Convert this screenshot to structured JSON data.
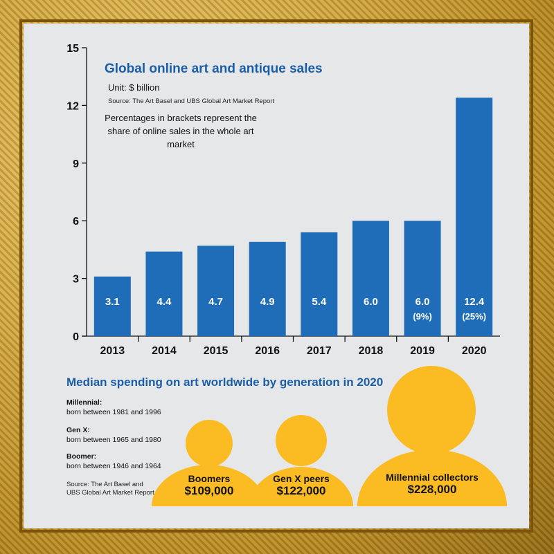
{
  "chart_data": [
    {
      "type": "bar",
      "title": "Global online art and antique sales",
      "unit": "Unit: $ billion",
      "source": "Source: The Art Basel and UBS Global Art Market Report",
      "note": "Percentages in brackets represent the share of online sales in the whole art market",
      "categories": [
        "2013",
        "2014",
        "2015",
        "2016",
        "2017",
        "2018",
        "2019",
        "2020"
      ],
      "values": [
        3.1,
        4.4,
        4.7,
        4.9,
        5.4,
        6.0,
        6.0,
        12.4
      ],
      "value_labels": [
        "3.1",
        "4.4",
        "4.7",
        "4.9",
        "5.4",
        "6.0",
        "6.0",
        "12.4"
      ],
      "share_labels": [
        "",
        "",
        "",
        "",
        "",
        "",
        "(9%)",
        "(25%)"
      ],
      "yticks": [
        "0",
        "3",
        "6",
        "9",
        "12",
        "15"
      ],
      "ylim": [
        0,
        15
      ],
      "grid": false,
      "bar_color": "#1f6db8"
    },
    {
      "type": "other",
      "title": "Median spending on art worldwide by generation in 2020",
      "definitions": [
        {
          "label": "Millennial:",
          "text": "born between 1981 and 1996"
        },
        {
          "label": "Gen X:",
          "text": "born between 1965 and 1980"
        },
        {
          "label": "Boomer:",
          "text": "born between 1946 and 1964"
        }
      ],
      "source": "Source: The Art Basel and UBS Global Art Market Report",
      "groups": [
        {
          "name": "Boomers",
          "amount": "$109,000",
          "value": 109000
        },
        {
          "name": "Gen X peers",
          "amount": "$122,000",
          "value": 122000
        },
        {
          "name": "Millennial collectors",
          "amount": "$228,000",
          "value": 228000
        }
      ],
      "figure_color": "#fbbb22"
    }
  ]
}
